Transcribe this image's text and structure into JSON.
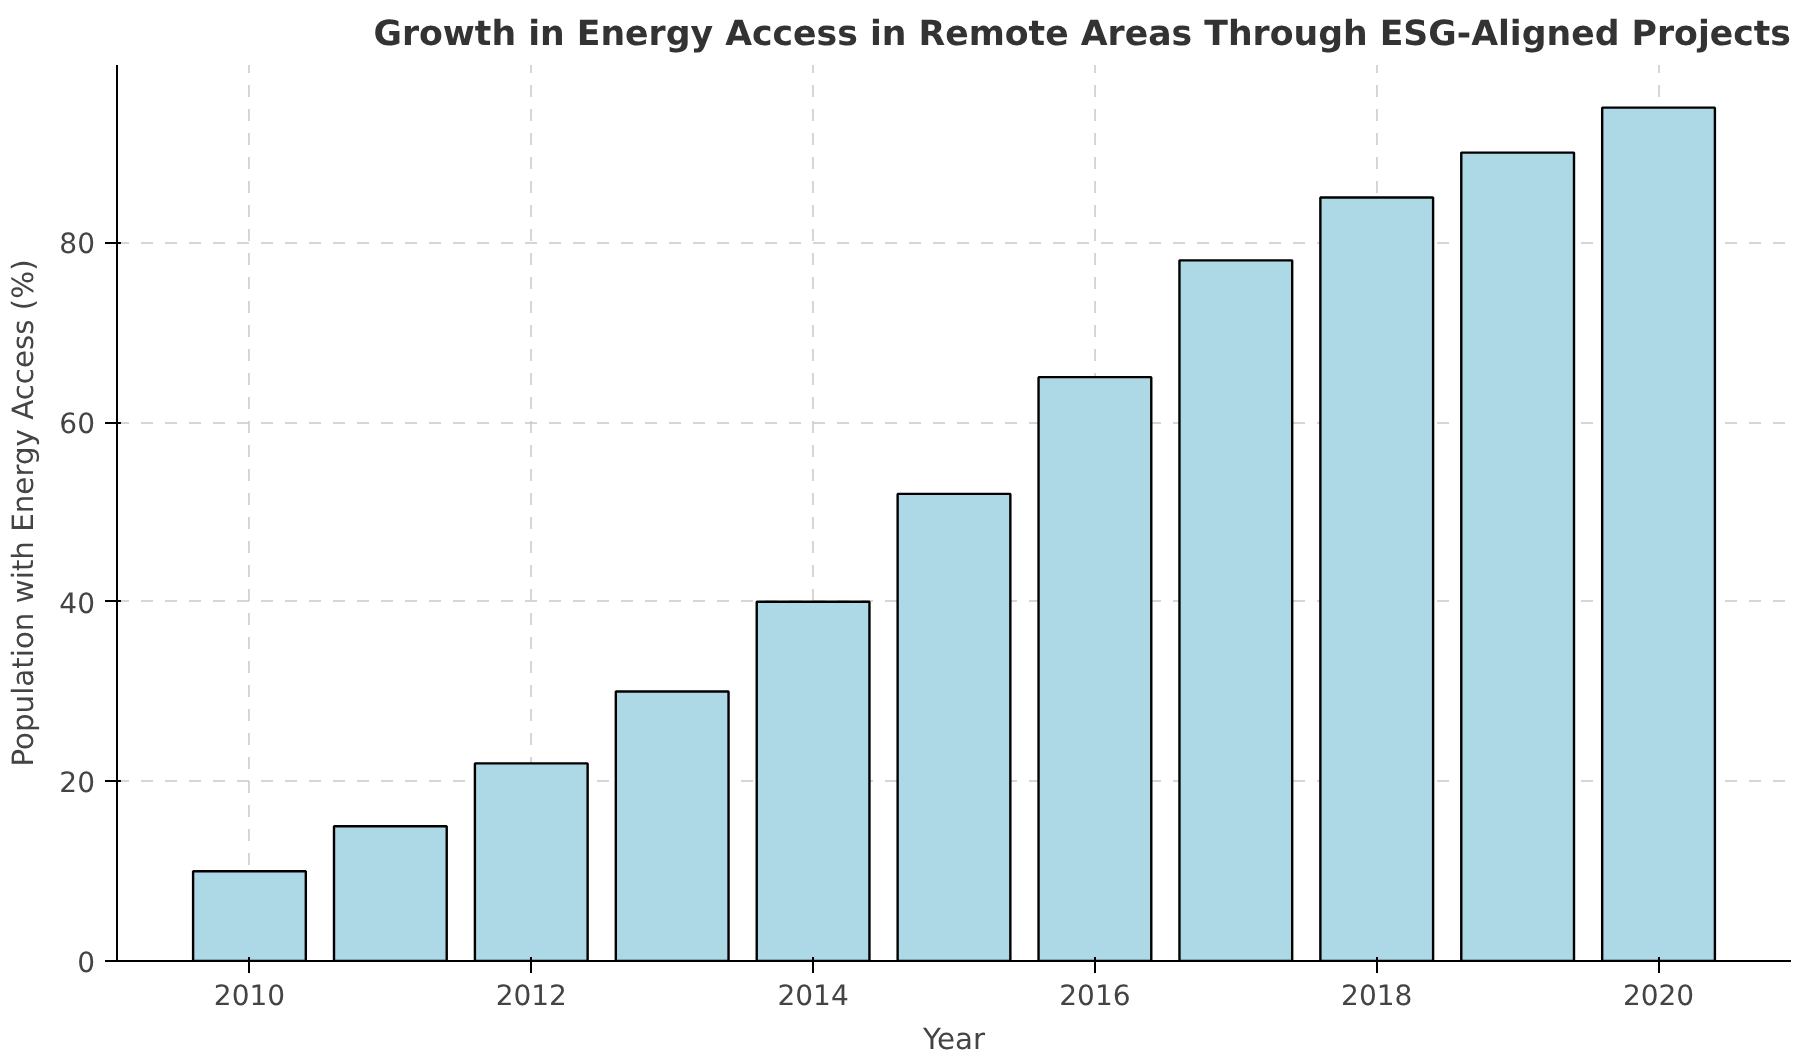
{
  "chart_data": {
    "type": "bar",
    "title": "Growth in Energy Access in Remote Areas Through ESG-Aligned Projects",
    "xlabel": "Year",
    "ylabel": "Population with Energy Access (%)",
    "x": [
      2010,
      2011,
      2012,
      2013,
      2014,
      2015,
      2016,
      2017,
      2018,
      2019,
      2020
    ],
    "values": [
      10,
      15,
      22,
      30,
      40,
      52,
      65,
      78,
      85,
      90,
      95
    ],
    "color": "#add8e6",
    "xlim": [
      2009.06,
      2020.94
    ],
    "xticks": [
      2010,
      2012,
      2014,
      2016,
      2018,
      2020
    ],
    "ylim": [
      0,
      99.75
    ],
    "yticks": [
      0,
      20,
      40,
      60,
      80
    ],
    "grid": true
  }
}
